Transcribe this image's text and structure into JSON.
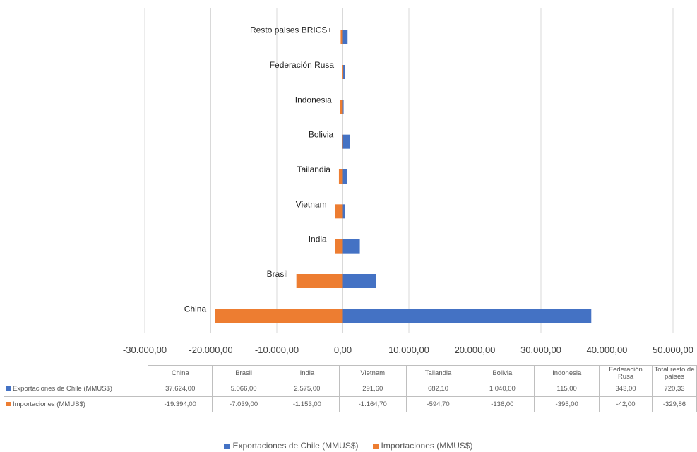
{
  "chart_data": {
    "type": "bar",
    "orientation": "horizontal",
    "stacked": true,
    "categories": [
      "China",
      "Brasil",
      "India",
      "Vietnam",
      "Tailandia",
      "Bolivia",
      "Indonesia",
      "Federación Rusa",
      "Resto paises BRICS+"
    ],
    "series": [
      {
        "name": "Exportaciones de Chile (MMUS$)",
        "color": "#4472c4",
        "values": [
          37624.0,
          5066.0,
          2575.0,
          291.6,
          682.1,
          1040.0,
          115.0,
          343.0,
          720.33
        ]
      },
      {
        "name": "Importaciones (MMUS$)",
        "color": "#ed7d31",
        "values": [
          -19394.0,
          -7039.0,
          -1153.0,
          -1164.7,
          -594.7,
          -136.0,
          -395.0,
          -42.0,
          -329.86
        ]
      }
    ],
    "x_ticks": [
      "-30.000,00",
      "-20.000,00",
      "-10.000,00",
      "0,00",
      "10.000,00",
      "20.000,00",
      "30.000,00",
      "40.000,00",
      "50.000,00"
    ],
    "xlim": [
      -30000,
      50000
    ],
    "grid": true,
    "legend_position": "bottom",
    "data_table": {
      "headers": [
        "China",
        "Brasil",
        "India",
        "Vietnam",
        "Tailandia",
        "Bolivia",
        "Indonesia",
        "Federación Rusa",
        "Total resto de países"
      ],
      "rows": [
        {
          "label": "Exportaciones de Chile (MMUS$)",
          "color": "#4472c4",
          "cells": [
            "37.624,00",
            "5.066,00",
            "2.575,00",
            "291,60",
            "682,10",
            "1.040,00",
            "115,00",
            "343,00",
            "720,33"
          ]
        },
        {
          "label": "Importaciones (MMUS$)",
          "color": "#ed7d31",
          "cells": [
            "-19.394,00",
            "-7.039,00",
            "-1.153,00",
            "-1.164,70",
            "-594,70",
            "-136,00",
            "-395,00",
            "-42,00",
            "-329,86"
          ]
        }
      ]
    }
  }
}
